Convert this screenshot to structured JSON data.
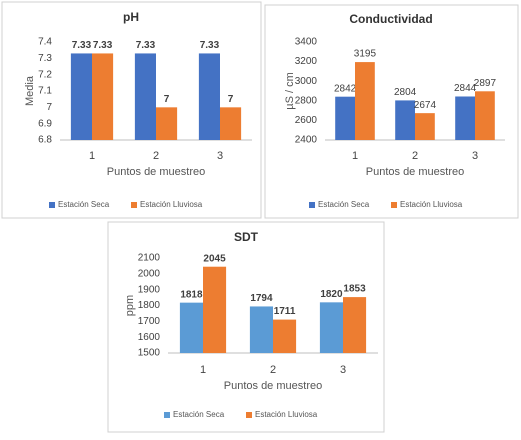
{
  "chart_data": [
    {
      "type": "bar",
      "title": "pH",
      "y_label": "Media",
      "x_label": "Puntos de muestreo",
      "categories": [
        "1",
        "2",
        "3"
      ],
      "series": [
        {
          "name": "Estación Seca",
          "color": "#4472c4",
          "values": [
            7.33,
            7.33,
            7.33
          ]
        },
        {
          "name": "Estación Lluviosa",
          "color": "#ed7d31",
          "values": [
            7.33,
            7,
            7
          ]
        }
      ],
      "ylim": [
        6.8,
        7.4
      ],
      "yticks": [
        6.8,
        6.9,
        7,
        7.1,
        7.2,
        7.3,
        7.4
      ],
      "label_weight": "bold"
    },
    {
      "type": "bar",
      "title": "Conductividad",
      "y_label": "µS / cm",
      "x_label": "Puntos de muestreo",
      "categories": [
        "1",
        "2",
        "3"
      ],
      "series": [
        {
          "name": "Estación Seca",
          "color": "#4472c4",
          "values": [
            2842,
            2804,
            2844
          ]
        },
        {
          "name": "Estación Lluviosa",
          "color": "#ed7d31",
          "values": [
            3195,
            2674,
            2897
          ]
        }
      ],
      "ylim": [
        2400,
        3400
      ],
      "yticks": [
        2400,
        2600,
        2800,
        3000,
        3200,
        3400
      ],
      "label_weight": "normal"
    },
    {
      "type": "bar",
      "title": "SDT",
      "y_label": "ppm",
      "x_label": "Puntos de muestreo",
      "categories": [
        "1",
        "2",
        "3"
      ],
      "series": [
        {
          "name": "Estación Seca",
          "color": "#5b9bd5",
          "values": [
            1818,
            1794,
            1820
          ]
        },
        {
          "name": "Estación Lluviosa",
          "color": "#ed7d31",
          "values": [
            2045,
            1711,
            1853
          ]
        }
      ],
      "ylim": [
        1500,
        2100
      ],
      "yticks": [
        1500,
        1600,
        1700,
        1800,
        1900,
        2000,
        2100
      ],
      "label_weight": "bold"
    }
  ]
}
